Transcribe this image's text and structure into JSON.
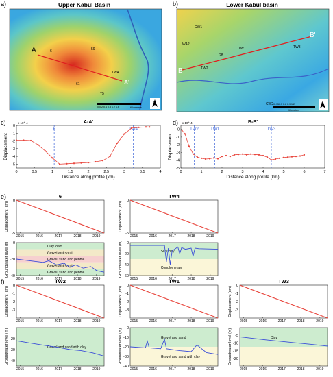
{
  "panels": {
    "a": {
      "letter": "a)",
      "title": "Upper Kabul Basin",
      "profile_start": "A",
      "profile_end": "A'",
      "wells": [
        "6",
        "59",
        "TW4",
        "61",
        "T5"
      ],
      "scale_ticks": "0 0.2 0.4   0.8   1.2   1.6",
      "scale_unit": "Kilometers",
      "north": "N"
    },
    "b": {
      "letter": "b)",
      "title": "Lower Kabul basin",
      "profile_start": "B",
      "profile_end": "B'",
      "wells": [
        "CW1",
        "WA2",
        "28",
        "TW1",
        "TW3",
        "TW2",
        "CW2"
      ],
      "scale_ticks": "00.150.3   0.6   0.9   1.2",
      "scale_unit": "Kilometers",
      "north": "N"
    }
  },
  "profile_marks": {
    "c": {
      "letter": "c)",
      "exp": "x 10^-4",
      "marks": [
        {
          "label": "6",
          "x": 1.05
        },
        {
          "label": "TW4",
          "x": 3.25
        }
      ]
    },
    "d": {
      "letter": "d)",
      "exp": "x 10^-4",
      "marks": [
        {
          "label": "TW2",
          "x": 0.65
        },
        {
          "label": "TW1",
          "x": 1.65
        },
        {
          "label": "TW3",
          "x": 4.4
        }
      ]
    }
  },
  "section_labels": {
    "e": "e)",
    "f": "f)"
  },
  "lithology": {
    "6": [
      {
        "label": "Clay loam",
        "color": "#cdeccf"
      },
      {
        "label": "Gravel and sand",
        "color": "#f3e9c8"
      },
      {
        "label": "Gravel, sand and pebble",
        "color": "#f6d0cf"
      },
      {
        "label": "Gravel and sand",
        "color": "#f3e9c8"
      },
      {
        "label": "Gravel, sand and pebble",
        "color": "#cdeccf"
      }
    ],
    "TW4": [
      {
        "label": "Silty clay",
        "color": "#cdeccf"
      },
      {
        "label": "Conglomerate",
        "color": "#fbf6d8"
      }
    ],
    "TW2": [
      {
        "label": "Gravel and sand with clay",
        "color": "#cdeccf"
      }
    ],
    "TW1": [
      {
        "label": "Gravel and sand",
        "color": "#cdeccf"
      },
      {
        "label": "Gravel and sand with clay",
        "color": "#fbf6d8"
      }
    ],
    "TW3": [
      {
        "label": "Clay",
        "color": "#cdeccf"
      },
      {
        "label": "",
        "color": "#fbf6d8"
      }
    ]
  },
  "colors": {
    "insar": "#e8453c",
    "groundwater": "#3b4ed8",
    "profile_line": "#e02020",
    "marker": "#3b63d8"
  },
  "chart_data": [
    {
      "id": "c",
      "type": "line",
      "title": "A-A'",
      "xlabel": "Distance along profile (km)",
      "ylabel": "Displacement",
      "xlim": [
        0,
        4
      ],
      "ylim": [
        -5.5,
        0
      ],
      "xticks": [
        0,
        0.5,
        1,
        1.5,
        2,
        2.5,
        3,
        3.5,
        4
      ],
      "yticks": [
        -5,
        -4,
        -3,
        -2,
        -1,
        0
      ],
      "x": [
        0,
        0.2,
        0.4,
        0.6,
        0.8,
        1.0,
        1.2,
        1.4,
        1.6,
        1.8,
        2.0,
        2.2,
        2.4,
        2.6,
        2.8,
        3.0,
        3.2,
        3.4,
        3.6,
        3.7
      ],
      "y": [
        -1.9,
        -1.9,
        -1.95,
        -2.5,
        -3.3,
        -4.2,
        -5.0,
        -4.95,
        -4.9,
        -4.85,
        -4.8,
        -4.7,
        -4.55,
        -4.0,
        -2.3,
        -1.1,
        -0.35,
        -0.25,
        -0.2,
        -0.2
      ]
    },
    {
      "id": "d",
      "type": "line",
      "title": "B-B'",
      "xlabel": "Distance along profile (km)",
      "ylabel": "Displacement",
      "xlim": [
        0,
        7
      ],
      "ylim": [
        -5,
        0.5
      ],
      "xticks": [
        0,
        1,
        2,
        3,
        4,
        5,
        6,
        7
      ],
      "yticks": [
        -5,
        -4,
        -3,
        -2,
        -1,
        0
      ],
      "x": [
        0.05,
        0.2,
        0.4,
        0.6,
        0.8,
        1.0,
        1.2,
        1.4,
        1.6,
        1.8,
        2.0,
        2.2,
        2.4,
        2.6,
        2.8,
        3.0,
        3.2,
        3.4,
        3.6,
        3.8,
        4.0,
        4.2,
        4.4,
        4.6,
        4.8,
        5.0,
        5.2,
        5.4,
        5.6,
        5.8,
        6.0
      ],
      "y": [
        -0.1,
        -0.6,
        -2.2,
        -3.2,
        -3.6,
        -3.75,
        -3.85,
        -3.8,
        -3.7,
        -3.8,
        -3.5,
        -3.4,
        -3.5,
        -3.3,
        -3.25,
        -3.2,
        -3.3,
        -3.2,
        -3.25,
        -3.3,
        -3.4,
        -3.6,
        -3.95,
        -3.85,
        -3.75,
        -3.65,
        -3.6,
        -3.55,
        -3.5,
        -3.45,
        -3.3
      ]
    },
    {
      "id": "ts-6",
      "type": "line",
      "title": "6",
      "xlabel": "",
      "ylabel_top": "Displacement (cm)",
      "ylabel_bottom": "Groundwater level (m)",
      "xlim": [
        2014.8,
        2019.4
      ],
      "xticks": [
        2015,
        2016,
        2017,
        2018,
        2019
      ],
      "insar": {
        "ylim": [
          -5,
          0
        ],
        "yticks": [
          0,
          -5
        ],
        "x": [
          2014.8,
          2019.4
        ],
        "y": [
          0,
          -5
        ]
      },
      "gw": {
        "ylim": [
          -40,
          0
        ],
        "yticks": [
          0,
          -20,
          -40
        ],
        "x": [
          2014.8,
          2015.5,
          2016.2,
          2016.5,
          2016.9,
          2017.3,
          2017.6,
          2017.9,
          2018.3,
          2018.7,
          2019.0,
          2019.4
        ],
        "y": [
          -20,
          -22,
          -24,
          -22,
          -27,
          -25,
          -30,
          -27,
          -31,
          -29,
          -34,
          -36
        ]
      }
    },
    {
      "id": "ts-TW4",
      "type": "line",
      "title": "TW4",
      "xlabel": "",
      "ylabel_top": "Displacement (cm)",
      "ylabel_bottom": "Groundwater level (m)",
      "xlim": [
        2014.8,
        2019.4
      ],
      "xticks": [
        2015,
        2016,
        2017,
        2018,
        2019
      ],
      "insar": {
        "ylim": [
          -5,
          0
        ],
        "yticks": [
          0,
          -5
        ],
        "x": [
          2014.8,
          2019.4
        ],
        "y": [
          0,
          -5
        ]
      },
      "gw": {
        "ylim": [
          -60,
          0
        ],
        "yticks": [
          0,
          -20,
          -40,
          -60
        ],
        "x": [
          2014.8,
          2016.6,
          2016.7,
          2016.8,
          2016.9,
          2017.0,
          2017.3,
          2017.4,
          2017.5,
          2017.7,
          2018.0,
          2018.1,
          2018.2,
          2018.4,
          2019.4
        ],
        "y": [
          -5,
          -5,
          -35,
          -10,
          -40,
          -15,
          -8,
          -20,
          -9,
          -12,
          -10,
          -25,
          -10,
          -11,
          -12
        ]
      }
    },
    {
      "id": "ts-TW2",
      "type": "line",
      "title": "TW2",
      "xlabel": "",
      "ylabel_top": "Displacement (cm)",
      "ylabel_bottom": "Groundwater level (m)",
      "xlim": [
        2014.8,
        2019.4
      ],
      "xticks": [
        2015,
        2016,
        2017,
        2018,
        2019
      ],
      "insar": {
        "ylim": [
          -4,
          0
        ],
        "yticks": [
          0,
          -1,
          -2,
          -3
        ],
        "x": [
          2014.8,
          2019.4
        ],
        "y": [
          0,
          -4
        ]
      },
      "gw": {
        "ylim": [
          -45,
          -10
        ],
        "yticks": [
          -20,
          -30,
          -40
        ],
        "x": [
          2014.8,
          2015.5,
          2016.2,
          2017.0,
          2017.6,
          2018.2,
          2018.8,
          2019.4
        ],
        "y": [
          -22,
          -24,
          -26,
          -28,
          -30,
          -31,
          -33,
          -36
        ]
      }
    },
    {
      "id": "ts-TW1",
      "type": "line",
      "title": "TW1",
      "xlabel": "",
      "ylabel_top": "Displacement (cm)",
      "ylabel_bottom": "Groundwater level (m)",
      "xlim": [
        2014.8,
        2019.4
      ],
      "xticks": [
        2015,
        2016,
        2017,
        2018,
        2019
      ],
      "insar": {
        "ylim": [
          -4,
          0
        ],
        "yticks": [
          0,
          -1,
          -2,
          -3
        ],
        "x": [
          2014.8,
          2019.4
        ],
        "y": [
          0,
          -4
        ]
      },
      "gw": {
        "ylim": [
          -40,
          0
        ],
        "yticks": [
          0,
          -10,
          -20,
          -30,
          -40
        ],
        "x": [
          2014.8,
          2015.6,
          2015.7,
          2015.8,
          2016.4,
          2016.6,
          2016.7,
          2017.4,
          2018.0,
          2018.3,
          2018.8,
          2019.4
        ],
        "y": [
          -20,
          -21,
          -14,
          -21,
          -22,
          -12,
          -22,
          -24,
          -25,
          -18,
          -26,
          -28
        ]
      }
    },
    {
      "id": "ts-TW3",
      "type": "line",
      "title": "TW3",
      "xlabel": "",
      "ylabel_top": "Displacement (cm)",
      "ylabel_bottom": "Groundwater level (m)",
      "xlim": [
        2014.8,
        2019.4
      ],
      "xticks": [
        2015,
        2016,
        2017,
        2018,
        2019
      ],
      "insar": {
        "ylim": [
          -4,
          0
        ],
        "yticks": [
          0,
          -1,
          -2,
          -3
        ],
        "x": [
          2014.8,
          2019.4
        ],
        "y": [
          0,
          -4
        ]
      },
      "gw": {
        "ylim": [
          -25,
          0
        ],
        "yticks": [
          -5,
          -10,
          -15,
          -20
        ],
        "x": [
          2014.8,
          2015.5,
          2016.2,
          2017.0,
          2017.8,
          2018.6,
          2019.4
        ],
        "y": [
          -6,
          -7,
          -8,
          -9,
          -10,
          -11,
          -12
        ]
      }
    }
  ]
}
